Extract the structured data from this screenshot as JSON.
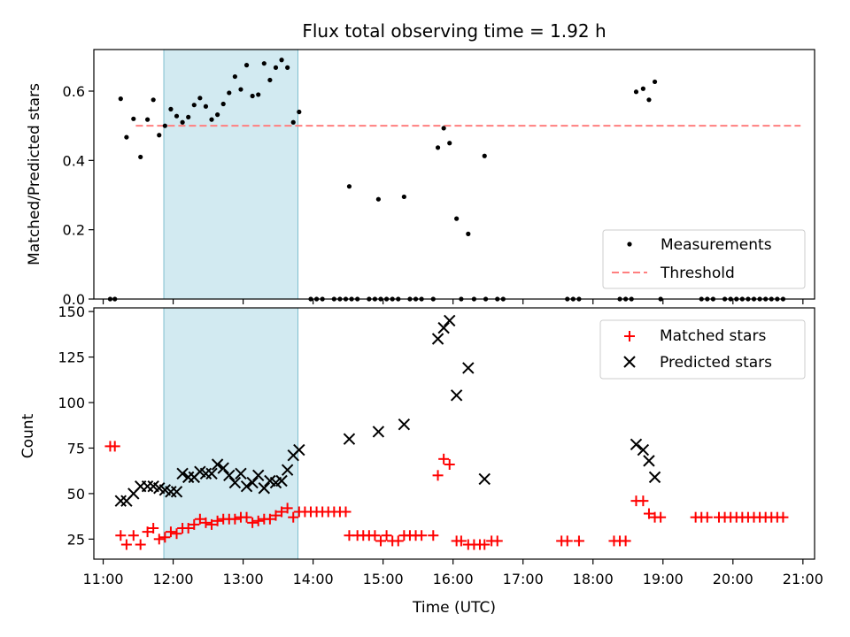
{
  "chart_data": [
    {
      "type": "scatter",
      "title": "Flux total observing time = 1.92 h",
      "xlabel": "",
      "ylabel": "Matched/Predicted stars",
      "xlim": [
        "10:52",
        "21:10"
      ],
      "ylim": [
        0,
        0.72
      ],
      "yticks": [
        0.0,
        0.2,
        0.4,
        0.6
      ],
      "ytick_labels": [
        "0.0",
        "0.2",
        "0.4",
        "0.6"
      ],
      "shaded_span": {
        "start": "11:52",
        "end": "13:47",
        "color": "#add8e6"
      },
      "threshold": {
        "y": 0.5,
        "x_start": "11:28",
        "x_end": "20:58",
        "color": "#ff7f7f",
        "style": "dashed"
      },
      "legend_position": "lower right",
      "series": [
        {
          "name": "Measurements",
          "color": "#000000",
          "marker": "dot",
          "points": [
            [
              "11:06",
              0.0
            ],
            [
              "11:10",
              0.0
            ],
            [
              "11:15",
              0.578
            ],
            [
              "11:20",
              0.467
            ],
            [
              "11:26",
              0.52
            ],
            [
              "11:32",
              0.41
            ],
            [
              "11:38",
              0.518
            ],
            [
              "11:43",
              0.575
            ],
            [
              "11:48",
              0.473
            ],
            [
              "11:53",
              0.5
            ],
            [
              "11:58",
              0.548
            ],
            [
              "12:03",
              0.528
            ],
            [
              "12:08",
              0.51
            ],
            [
              "12:13",
              0.525
            ],
            [
              "12:18",
              0.56
            ],
            [
              "12:23",
              0.58
            ],
            [
              "12:28",
              0.556
            ],
            [
              "12:33",
              0.518
            ],
            [
              "12:38",
              0.532
            ],
            [
              "12:43",
              0.563
            ],
            [
              "12:48",
              0.595
            ],
            [
              "12:53",
              0.642
            ],
            [
              "12:58",
              0.605
            ],
            [
              "13:03",
              0.675
            ],
            [
              "13:08",
              0.586
            ],
            [
              "13:13",
              0.59
            ],
            [
              "13:18",
              0.68
            ],
            [
              "13:23",
              0.632
            ],
            [
              "13:28",
              0.668
            ],
            [
              "13:33",
              0.69
            ],
            [
              "13:38",
              0.668
            ],
            [
              "13:43",
              0.51
            ],
            [
              "13:48",
              0.54
            ],
            [
              "13:58",
              0.0
            ],
            [
              "14:03",
              0.0
            ],
            [
              "14:08",
              0.0
            ],
            [
              "14:18",
              0.0
            ],
            [
              "14:23",
              0.0
            ],
            [
              "14:28",
              0.0
            ],
            [
              "14:33",
              0.0
            ],
            [
              "14:38",
              0.0
            ],
            [
              "14:31",
              0.325
            ],
            [
              "14:48",
              0.0
            ],
            [
              "14:53",
              0.0
            ],
            [
              "14:58",
              0.0
            ],
            [
              "14:56",
              0.288
            ],
            [
              "15:03",
              0.0
            ],
            [
              "15:08",
              0.0
            ],
            [
              "15:13",
              0.0
            ],
            [
              "15:18",
              0.295
            ],
            [
              "15:23",
              0.0
            ],
            [
              "15:28",
              0.0
            ],
            [
              "15:33",
              0.0
            ],
            [
              "15:43",
              0.0
            ],
            [
              "15:47",
              0.437
            ],
            [
              "15:52",
              0.493
            ],
            [
              "15:57",
              0.45
            ],
            [
              "16:03",
              0.232
            ],
            [
              "16:07",
              0.0
            ],
            [
              "16:13",
              0.188
            ],
            [
              "16:18",
              0.0
            ],
            [
              "16:28",
              0.0
            ],
            [
              "16:27",
              0.413
            ],
            [
              "16:38",
              0.0
            ],
            [
              "16:43",
              0.0
            ],
            [
              "17:38",
              0.0
            ],
            [
              "17:43",
              0.0
            ],
            [
              "17:48",
              0.0
            ],
            [
              "18:23",
              0.0
            ],
            [
              "18:28",
              0.0
            ],
            [
              "18:33",
              0.0
            ],
            [
              "18:37",
              0.598
            ],
            [
              "18:43",
              0.607
            ],
            [
              "18:48",
              0.575
            ],
            [
              "18:53",
              0.627
            ],
            [
              "18:58",
              0.0
            ],
            [
              "19:33",
              0.0
            ],
            [
              "19:38",
              0.0
            ],
            [
              "19:43",
              0.0
            ],
            [
              "19:53",
              0.0
            ],
            [
              "19:58",
              0.0
            ],
            [
              "20:03",
              0.0
            ],
            [
              "20:08",
              0.0
            ],
            [
              "20:13",
              0.0
            ],
            [
              "20:18",
              0.0
            ],
            [
              "20:23",
              0.0
            ],
            [
              "20:28",
              0.0
            ],
            [
              "20:33",
              0.0
            ],
            [
              "20:38",
              0.0
            ],
            [
              "20:43",
              0.0
            ]
          ]
        },
        {
          "name": "Threshold",
          "color": "#ff7f7f",
          "style": "dashed",
          "values": [
            0.5
          ]
        }
      ]
    },
    {
      "type": "scatter",
      "title": "",
      "xlabel": "Time (UTC)",
      "ylabel": "Count",
      "xlim": [
        "10:52",
        "21:10"
      ],
      "ylim": [
        14,
        152
      ],
      "xticks": [
        "11:00",
        "12:00",
        "13:00",
        "14:00",
        "15:00",
        "16:00",
        "17:00",
        "18:00",
        "19:00",
        "20:00",
        "21:00"
      ],
      "yticks": [
        25,
        50,
        75,
        100,
        125,
        150
      ],
      "ytick_labels": [
        "25",
        "50",
        "75",
        "100",
        "125",
        "150"
      ],
      "shaded_span": {
        "start": "11:52",
        "end": "13:47",
        "color": "#add8e6"
      },
      "legend_position": "upper right",
      "series": [
        {
          "name": "Matched stars",
          "color": "#ff0000",
          "marker": "plus",
          "points": [
            [
              "11:06",
              76
            ],
            [
              "11:10",
              76
            ],
            [
              "11:15",
              27
            ],
            [
              "11:20",
              22
            ],
            [
              "11:26",
              27
            ],
            [
              "11:32",
              22
            ],
            [
              "11:38",
              29
            ],
            [
              "11:43",
              31
            ],
            [
              "11:48",
              25
            ],
            [
              "11:53",
              26
            ],
            [
              "11:58",
              29
            ],
            [
              "12:03",
              28
            ],
            [
              "12:08",
              31
            ],
            [
              "12:13",
              31
            ],
            [
              "12:18",
              33
            ],
            [
              "12:23",
              36
            ],
            [
              "12:28",
              34
            ],
            [
              "12:33",
              33
            ],
            [
              "12:38",
              35
            ],
            [
              "12:43",
              36
            ],
            [
              "12:48",
              36
            ],
            [
              "12:53",
              36
            ],
            [
              "12:58",
              37
            ],
            [
              "13:03",
              37
            ],
            [
              "13:08",
              34
            ],
            [
              "13:13",
              35
            ],
            [
              "13:18",
              36
            ],
            [
              "13:23",
              36
            ],
            [
              "13:28",
              38
            ],
            [
              "13:33",
              40
            ],
            [
              "13:38",
              42
            ],
            [
              "13:43",
              37
            ],
            [
              "13:48",
              40
            ],
            [
              "13:53",
              40
            ],
            [
              "13:58",
              40
            ],
            [
              "14:03",
              40
            ],
            [
              "14:08",
              40
            ],
            [
              "14:13",
              40
            ],
            [
              "14:18",
              40
            ],
            [
              "14:23",
              40
            ],
            [
              "14:28",
              40
            ],
            [
              "14:31",
              27
            ],
            [
              "14:38",
              27
            ],
            [
              "14:43",
              27
            ],
            [
              "14:48",
              27
            ],
            [
              "14:53",
              27
            ],
            [
              "14:58",
              24
            ],
            [
              "15:03",
              27
            ],
            [
              "15:08",
              24
            ],
            [
              "15:13",
              24
            ],
            [
              "15:18",
              27
            ],
            [
              "15:23",
              27
            ],
            [
              "15:28",
              27
            ],
            [
              "15:33",
              27
            ],
            [
              "15:43",
              27
            ],
            [
              "15:47",
              60
            ],
            [
              "15:52",
              69
            ],
            [
              "15:57",
              66
            ],
            [
              "16:03",
              24
            ],
            [
              "16:07",
              24
            ],
            [
              "16:13",
              22
            ],
            [
              "16:18",
              22
            ],
            [
              "16:23",
              22
            ],
            [
              "16:27",
              22
            ],
            [
              "16:33",
              24
            ],
            [
              "16:38",
              24
            ],
            [
              "17:33",
              24
            ],
            [
              "17:38",
              24
            ],
            [
              "17:48",
              24
            ],
            [
              "18:18",
              24
            ],
            [
              "18:23",
              24
            ],
            [
              "18:28",
              24
            ],
            [
              "18:37",
              46
            ],
            [
              "18:43",
              46
            ],
            [
              "18:48",
              39
            ],
            [
              "18:53",
              37
            ],
            [
              "18:58",
              37
            ],
            [
              "19:28",
              37
            ],
            [
              "19:33",
              37
            ],
            [
              "19:38",
              37
            ],
            [
              "19:48",
              37
            ],
            [
              "19:53",
              37
            ],
            [
              "19:58",
              37
            ],
            [
              "20:03",
              37
            ],
            [
              "20:08",
              37
            ],
            [
              "20:13",
              37
            ],
            [
              "20:18",
              37
            ],
            [
              "20:23",
              37
            ],
            [
              "20:28",
              37
            ],
            [
              "20:33",
              37
            ],
            [
              "20:38",
              37
            ],
            [
              "20:43",
              37
            ]
          ]
        },
        {
          "name": "Predicted stars",
          "color": "#000000",
          "marker": "x",
          "points": [
            [
              "11:15",
              46
            ],
            [
              "11:20",
              46
            ],
            [
              "11:26",
              50
            ],
            [
              "11:32",
              54
            ],
            [
              "11:38",
              54
            ],
            [
              "11:43",
              54
            ],
            [
              "11:48",
              53
            ],
            [
              "11:53",
              52
            ],
            [
              "11:58",
              51
            ],
            [
              "12:03",
              51
            ],
            [
              "12:08",
              61
            ],
            [
              "12:13",
              59
            ],
            [
              "12:18",
              59
            ],
            [
              "12:23",
              62
            ],
            [
              "12:28",
              61
            ],
            [
              "12:33",
              61
            ],
            [
              "12:38",
              66
            ],
            [
              "12:43",
              64
            ],
            [
              "12:48",
              60
            ],
            [
              "12:53",
              56
            ],
            [
              "12:58",
              61
            ],
            [
              "13:03",
              54
            ],
            [
              "13:08",
              56
            ],
            [
              "13:13",
              60
            ],
            [
              "13:18",
              53
            ],
            [
              "13:23",
              57
            ],
            [
              "13:28",
              56
            ],
            [
              "13:33",
              57
            ],
            [
              "13:38",
              63
            ],
            [
              "13:43",
              71
            ],
            [
              "13:48",
              74
            ],
            [
              "14:31",
              80
            ],
            [
              "14:56",
              84
            ],
            [
              "15:18",
              88
            ],
            [
              "15:47",
              135
            ],
            [
              "15:52",
              141
            ],
            [
              "15:57",
              145
            ],
            [
              "16:03",
              104
            ],
            [
              "16:13",
              119
            ],
            [
              "16:27",
              58
            ],
            [
              "18:37",
              77
            ],
            [
              "18:43",
              74
            ],
            [
              "18:48",
              68
            ],
            [
              "18:53",
              59
            ]
          ]
        }
      ]
    }
  ]
}
